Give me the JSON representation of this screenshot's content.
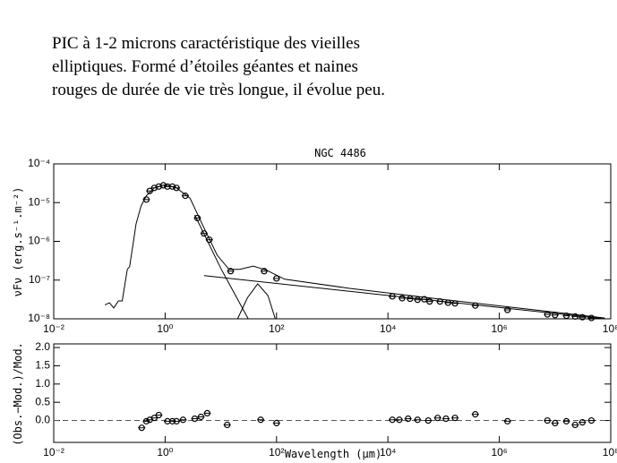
{
  "text": {
    "lines": [
      "PIC à 1-2 microns caractéristique des vieilles",
      "elliptiques. Formé d’étoiles géantes et naines",
      "rouges de durée de vie très longue, il évolue peu."
    ]
  },
  "chart_data": [
    {
      "type": "scatter",
      "title": "NGC 4486",
      "y_label": "νFν (erg.s⁻¹.m⁻²)",
      "xlog": true,
      "ylog": true,
      "xlim": [
        0.01,
        100000000
      ],
      "ylim": [
        1e-08,
        0.0001
      ],
      "xticks": [
        {
          "value": 0.01,
          "label": "10⁻²"
        },
        {
          "value": 1,
          "label": "10⁰"
        },
        {
          "value": 100,
          "label": "10²"
        },
        {
          "value": 10000,
          "label": "10⁴"
        },
        {
          "value": 1000000,
          "label": "10⁶"
        },
        {
          "value": 100000000,
          "label": "10⁸"
        }
      ],
      "yticks": [
        {
          "value": 1e-08,
          "label": "10⁻⁸"
        },
        {
          "value": 1e-07,
          "label": "10⁻⁷"
        },
        {
          "value": 1e-06,
          "label": "10⁻⁶"
        },
        {
          "value": 1e-05,
          "label": "10⁻⁵"
        },
        {
          "value": 0.0001,
          "label": "10⁻⁴"
        }
      ],
      "series": [
        {
          "mode": "line",
          "color": "#000000",
          "x": [
            0.083,
            0.1,
            0.12,
            0.145,
            0.17,
            0.21,
            0.23,
            0.27,
            0.3,
            0.37,
            0.46,
            0.64,
            1.0,
            1.6,
            2.8,
            5.0,
            8.6,
            14,
            22,
            38,
            66,
            140,
            1900,
            76000,
            3100000,
            78000000
          ],
          "values": [
            2.3e-08,
            2.6e-08,
            1.9e-08,
            2.9e-08,
            2.9e-08,
            1.9e-07,
            2.2e-07,
            9.8e-07,
            2.8e-06,
            8.2e-06,
            1.5e-05,
            2.4e-05,
            2.9e-05,
            2.4e-05,
            1.3e-05,
            2.2e-06,
            4.4e-07,
            1.9e-07,
            1.9e-07,
            2.3e-07,
            1.8e-07,
            1.05e-07,
            6.2e-08,
            3.3e-08,
            1.8e-08,
            1.05e-08
          ]
        },
        {
          "mode": "line",
          "color": "#000000",
          "x": [
            5,
            78000000
          ],
          "values": [
            1.3e-07,
            1e-08
          ]
        },
        {
          "mode": "line",
          "color": "#000000",
          "x": [
            20,
            30,
            46,
            70,
            95
          ],
          "values": [
            1e-08,
            3.5e-08,
            8e-08,
            4e-08,
            1e-08
          ]
        },
        {
          "mode": "line",
          "color": "#000000",
          "x": [
            3.4,
            10,
            31
          ],
          "values": [
            4.8e-06,
            2e-07,
            1e-08
          ]
        },
        {
          "mode": "points",
          "color": "#000000",
          "x": [
            0.46,
            0.53,
            0.64,
            0.77,
            0.93,
            1.1,
            1.35,
            1.6,
            2.3,
            3.8,
            5,
            6.2,
            15,
            60,
            100,
            12000,
            18000,
            25000,
            34000,
            45000,
            56000,
            86000,
            120000,
            160000,
            370000,
            1400000,
            7300000,
            10000000,
            16000000,
            23000000,
            31000000,
            45000000
          ],
          "values": [
            1.2e-05,
            2e-05,
            2.4e-05,
            2.6e-05,
            2.8e-05,
            2.6e-05,
            2.6e-05,
            2.4e-05,
            1.5e-05,
            4e-06,
            1.6e-06,
            1.1e-06,
            1.7e-07,
            1.7e-07,
            1.1e-07,
            3.8e-08,
            3.4e-08,
            3.3e-08,
            3.1e-08,
            3.2e-08,
            2.8e-08,
            2.8e-08,
            2.6e-08,
            2.5e-08,
            2.2e-08,
            1.7e-08,
            1.3e-08,
            1.25e-08,
            1.2e-08,
            1.15e-08,
            1.1e-08,
            1.05e-08
          ]
        }
      ]
    },
    {
      "type": "scatter",
      "y_label": "(Obs.−Mod.)/Mod.",
      "x_label": "Wavelength (μm)",
      "xlog": true,
      "ylog": false,
      "xlim": [
        0.01,
        100000000
      ],
      "ylim": [
        -0.6,
        2.1
      ],
      "reference_line": 0,
      "xticks": [
        {
          "value": 0.01,
          "label": "10⁻²"
        },
        {
          "value": 1,
          "label": "10⁰"
        },
        {
          "value": 100,
          "label": "10²"
        },
        {
          "value": 10000,
          "label": "10⁴"
        },
        {
          "value": 1000000,
          "label": "10⁶"
        },
        {
          "value": 100000000,
          "label": "10⁸"
        }
      ],
      "yticks": [
        {
          "value": 0,
          "label": "0.0"
        },
        {
          "value": 0.5,
          "label": "0.5"
        },
        {
          "value": 1,
          "label": "1.0"
        },
        {
          "value": 1.5,
          "label": "1.5"
        },
        {
          "value": 2,
          "label": "2.0"
        }
      ],
      "series": [
        {
          "mode": "points",
          "color": "#000000",
          "x": [
            0.38,
            0.46,
            0.53,
            0.64,
            0.77,
            1.1,
            1.35,
            1.6,
            2.1,
            3.4,
            4.4,
            5.7,
            13,
            52,
            100,
            12000,
            16000,
            23000,
            34000,
            53000,
            78000,
            110000,
            160000,
            370000,
            1400000,
            7300000,
            10000000,
            16000000,
            23000000,
            31000000,
            45000000
          ],
          "values": [
            -0.2,
            -0.02,
            0.02,
            0.07,
            0.15,
            -0.02,
            -0.02,
            -0.02,
            0.02,
            0.05,
            0.1,
            0.2,
            -0.12,
            0.02,
            -0.07,
            0.02,
            0.02,
            0.05,
            0.02,
            0,
            0.07,
            0.05,
            0.07,
            0.17,
            -0.02,
            0,
            -0.07,
            -0.02,
            -0.12,
            -0.05,
            0
          ]
        }
      ]
    }
  ]
}
